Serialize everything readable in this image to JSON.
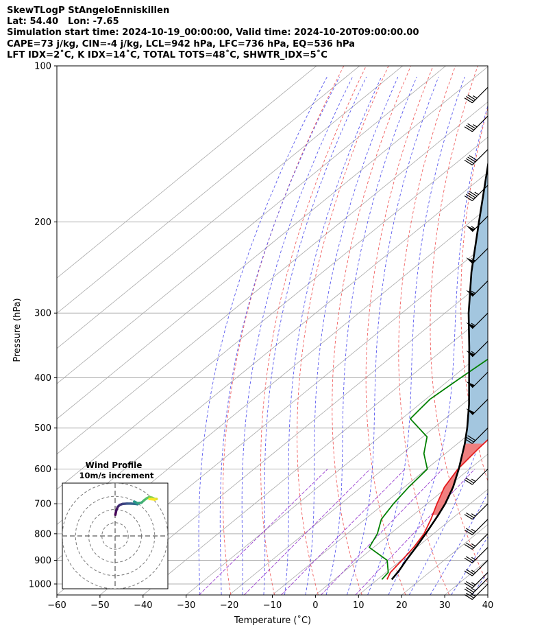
{
  "header": {
    "line1": "SkewTLogP StAngeloEnniskillen",
    "line2": "Lat: 54.40   Lon: -7.65",
    "line3": "Simulation start time: 2024-10-19_00:00:00, Valid time: 2024-10-20T09:00:00.00",
    "line4": "CAPE=73 j/kg, CIN=-4 j/kg, LCL=942 hPa, LFC=736 hPa, EQ=536 hPa",
    "line5": "LFT IDX=2˚C, K IDX=14˚C, TOTAL TOTS=48˚C, SHWTR_IDX=5˚C"
  },
  "chart_data": {
    "type": "skewt",
    "xlabel": "Temperature (˚C)",
    "ylabel": "Pressure (hPa)",
    "xlim": [
      -60,
      40
    ],
    "ylim": [
      1050,
      100
    ],
    "y_log": true,
    "grid": true,
    "x_ticks": [
      "−60",
      "−50",
      "−40",
      "−30",
      "−20",
      "−10",
      "0",
      "10",
      "20",
      "30",
      "40"
    ],
    "y_ticks": [
      "100",
      "200",
      "300",
      "400",
      "500",
      "600",
      "700",
      "800",
      "900",
      "1000"
    ],
    "cape_color": "#a3c6df",
    "cin_color": "#f08080",
    "temperature": {
      "color": "#e31a1c",
      "p": [
        980,
        950,
        900,
        850,
        800,
        750,
        700,
        650,
        600,
        550,
        500,
        450,
        400,
        350,
        300,
        270,
        250,
        230,
        200,
        170,
        150,
        130,
        115,
        100
      ],
      "t": [
        12.2,
        11.0,
        10.2,
        9.3,
        7.8,
        5.3,
        2.3,
        -0.7,
        -2.7,
        -3.7,
        -4.5,
        -5.0,
        -4.3,
        -3.0,
        -3.5,
        -5.2,
        -5.8,
        -5.4,
        -3.8,
        -2.0,
        1.0,
        6.0,
        11.0,
        17.5
      ]
    },
    "dewpoint": {
      "color": "#008000",
      "p": [
        980,
        950,
        900,
        850,
        800,
        750,
        700,
        650,
        600,
        560,
        520,
        480,
        460,
        440,
        400,
        370,
        340,
        310,
        290,
        270,
        250,
        230,
        215,
        200,
        180,
        150,
        120,
        100
      ],
      "t": [
        11.0,
        10.5,
        6.8,
        -1.0,
        -3.0,
        -6.2,
        -7.8,
        -9.0,
        -9.8,
        -15.0,
        -19.0,
        -28.0,
        -28.5,
        -29.0,
        -28.0,
        -27.0,
        -25.5,
        -22.5,
        -20.0,
        -15.5,
        -12.0,
        -14.0,
        -18.0,
        -22.0,
        -28.5,
        -27.0,
        -19.0,
        -12.0
      ]
    },
    "parcel": {
      "color": "#000000",
      "p": [
        980,
        942,
        900,
        850,
        800,
        736,
        700,
        650,
        600,
        536,
        500,
        450,
        400,
        350,
        300,
        250,
        200,
        150,
        100
      ],
      "t": [
        13.3,
        12.5,
        11.2,
        9.8,
        8.2,
        5.8,
        4.2,
        1.3,
        -2.5,
        -8.3,
        -12.2,
        -18.5,
        -26.0,
        -34.5,
        -44.5,
        -55.5,
        -68.0,
        -84.0,
        -104.0
      ]
    },
    "barbs": [
      {
        "p": 1000,
        "dir": 225,
        "speed": 25
      },
      {
        "p": 975,
        "dir": 225,
        "speed": 25
      },
      {
        "p": 950,
        "dir": 225,
        "speed": 25
      },
      {
        "p": 900,
        "dir": 225,
        "speed": 25
      },
      {
        "p": 850,
        "dir": 225,
        "speed": 25
      },
      {
        "p": 800,
        "dir": 225,
        "speed": 25
      },
      {
        "p": 750,
        "dir": 225,
        "speed": 25
      },
      {
        "p": 700,
        "dir": 225,
        "speed": 25
      },
      {
        "p": 600,
        "dir": 225,
        "speed": 25
      },
      {
        "p": 500,
        "dir": 225,
        "speed": 30
      },
      {
        "p": 440,
        "dir": 225,
        "speed": 50
      },
      {
        "p": 390,
        "dir": 225,
        "speed": 50
      },
      {
        "p": 340,
        "dir": 225,
        "speed": 55
      },
      {
        "p": 300,
        "dir": 225,
        "speed": 55
      },
      {
        "p": 260,
        "dir": 225,
        "speed": 55
      },
      {
        "p": 225,
        "dir": 225,
        "speed": 55
      },
      {
        "p": 195,
        "dir": 225,
        "speed": 55
      },
      {
        "p": 170,
        "dir": 225,
        "speed": 45
      },
      {
        "p": 145,
        "dir": 225,
        "speed": 40
      },
      {
        "p": 125,
        "dir": 225,
        "speed": 35
      },
      {
        "p": 110,
        "dir": 225,
        "speed": 35
      }
    ],
    "hodograph": {
      "title_line1": "Wind Profile",
      "title_line2": "10m/s increment",
      "ring_increment_ms": 10,
      "range_ms": 40,
      "color_start": "#440154",
      "color_end": "#fde725",
      "u": [
        0.2,
        0.8,
        2.0,
        3.5,
        6.0,
        9.0,
        12.0,
        15.0,
        17.0,
        16.0,
        14.5,
        17.0,
        20.0,
        22.0,
        24.0,
        26.0,
        28.0,
        30.0,
        31.5,
        30.0,
        26.0
      ],
      "v": [
        16.0,
        19.0,
        22.0,
        23.5,
        24.3,
        24.5,
        24.5,
        24.3,
        24.0,
        25.0,
        26.0,
        24.8,
        25.2,
        27.0,
        28.5,
        29.5,
        29.0,
        28.0,
        28.0,
        27.5,
        28.0
      ]
    }
  }
}
